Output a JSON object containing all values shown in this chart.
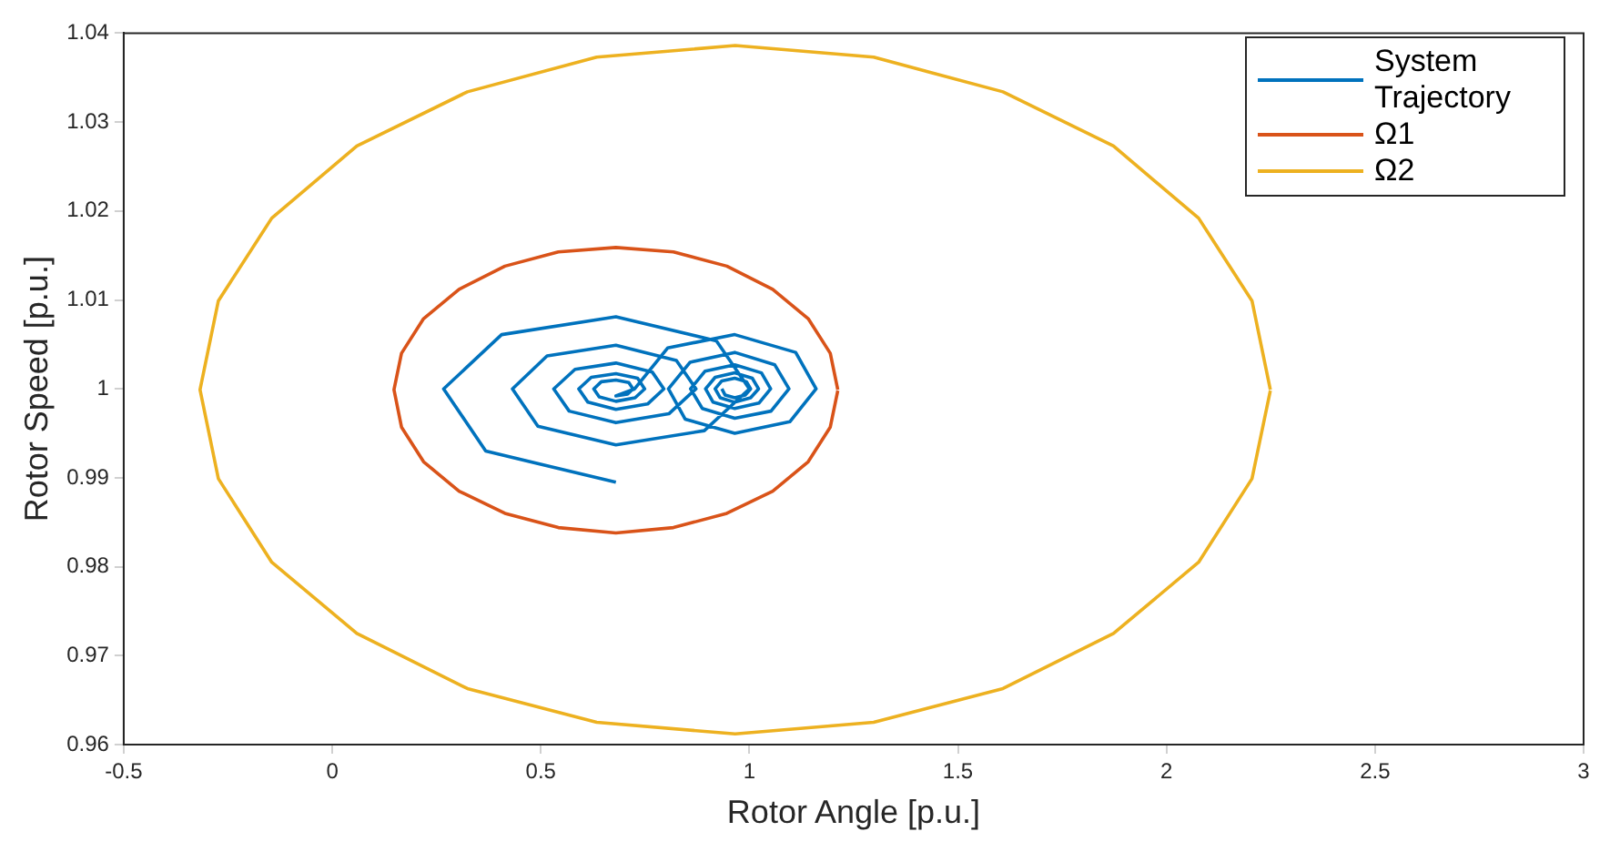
{
  "chart_data": {
    "type": "line",
    "xlabel": "Rotor Angle [p.u.]",
    "ylabel": "Rotor Speed [p.u.]",
    "xlim": [
      -0.5,
      3
    ],
    "xticks": [
      -0.5,
      0,
      0.5,
      1,
      1.5,
      2,
      2.5,
      3
    ],
    "ylim": [
      0.96,
      1.04
    ],
    "yticks": [
      0.96,
      0.97,
      0.98,
      0.99,
      1,
      1.01,
      1.02,
      1.03,
      1.04
    ],
    "grid": false,
    "legend": "top right",
    "marker": "none",
    "line_style": "solid",
    "series": [
      {
        "name": "System Trajectory",
        "color": "#0072bd",
        "x": [
          0.68,
          0.368,
          0.267,
          0.406,
          0.68,
          0.921,
          1.0,
          0.892,
          0.68,
          0.493,
          0.432,
          0.515,
          0.68,
          0.825,
          0.872,
          0.807,
          0.68,
          0.568,
          0.531,
          0.582,
          0.68,
          0.767,
          0.795,
          0.756,
          0.68,
          0.613,
          0.591,
          0.621,
          0.68,
          0.732,
          0.749,
          0.726,
          0.68,
          0.64,
          0.627,
          0.645,
          0.68,
          0.711,
          0.721,
          0.708,
          0.68,
          0.725,
          0.804,
          0.965,
          1.111,
          1.16,
          1.097,
          0.965,
          0.846,
          0.806,
          0.858,
          0.965,
          1.061,
          1.095,
          1.052,
          0.965,
          0.887,
          0.859,
          0.894,
          0.965,
          1.029,
          1.051,
          1.023,
          0.965,
          0.913,
          0.895,
          0.918,
          0.965,
          1.007,
          1.022,
          1.003,
          0.965,
          0.93,
          0.918,
          0.934,
          0.965,
          0.993,
          1.003,
          0.99,
          0.965,
          0.942,
          0.934
        ],
        "values": [
          0.9895,
          0.993,
          1.0,
          1.0061,
          1.0081,
          1.0054,
          1.0,
          0.9953,
          0.9937,
          0.9958,
          1.0,
          1.0037,
          1.0049,
          1.0032,
          1.0,
          0.9972,
          0.9962,
          0.9975,
          1.0,
          1.0022,
          1.0029,
          1.0019,
          1.0,
          0.9983,
          0.9977,
          0.9985,
          1.0,
          1.0013,
          1.0017,
          1.0012,
          1.0,
          0.999,
          0.9986,
          0.9991,
          1.0,
          1.0008,
          1.001,
          1.0007,
          1.0,
          0.9994,
          0.9992,
          1.0,
          1.0046,
          1.0061,
          1.0041,
          1.0,
          0.9963,
          0.995,
          0.9966,
          1.0,
          1.003,
          1.0041,
          1.0027,
          1.0,
          0.9975,
          0.9967,
          0.9978,
          1.0,
          1.002,
          1.0027,
          1.0018,
          1.0,
          0.9984,
          0.9978,
          0.9985,
          1.0,
          1.0013,
          1.0018,
          1.0012,
          1.0,
          0.999,
          0.9985,
          0.999,
          1.0,
          1.0009,
          1.0012,
          1.0008,
          1.0,
          0.9993,
          0.999,
          0.9993,
          1.0
        ]
      },
      {
        "name": "Ω1",
        "color": "#d95319",
        "x": [
          1.212,
          1.194,
          1.141,
          1.056,
          0.946,
          0.818,
          0.68,
          0.542,
          0.414,
          0.304,
          0.219,
          0.166,
          0.148,
          0.166,
          0.219,
          0.304,
          0.414,
          0.542,
          0.68,
          0.818,
          0.946,
          1.056,
          1.141,
          1.194,
          1.212
        ],
        "values": [
          0.9999,
          1.004,
          1.0079,
          1.0112,
          1.0138,
          1.0154,
          1.0159,
          1.0154,
          1.0138,
          1.0112,
          1.0079,
          1.004,
          0.9999,
          0.9957,
          0.9918,
          0.9885,
          0.986,
          0.9844,
          0.9838,
          0.9844,
          0.986,
          0.9885,
          0.9918,
          0.9957,
          0.9998
        ]
      },
      {
        "name": "Ω2",
        "color": "#edb120",
        "x": [
          2.249,
          2.205,
          2.077,
          1.873,
          1.608,
          1.298,
          0.966,
          0.634,
          0.324,
          0.059,
          -0.145,
          -0.273,
          -0.317,
          -0.273,
          -0.145,
          0.059,
          0.324,
          0.634,
          0.966,
          1.298,
          1.608,
          1.873,
          2.077,
          2.205,
          2.249
        ],
        "values": [
          0.9999,
          1.0099,
          1.0192,
          1.0273,
          1.0334,
          1.0373,
          1.0386,
          1.0373,
          1.0334,
          1.0273,
          1.0192,
          1.0099,
          0.9999,
          0.9899,
          0.9805,
          0.9725,
          0.9663,
          0.9625,
          0.9612,
          0.9625,
          0.9663,
          0.9725,
          0.9805,
          0.9899,
          0.9998
        ]
      }
    ]
  }
}
